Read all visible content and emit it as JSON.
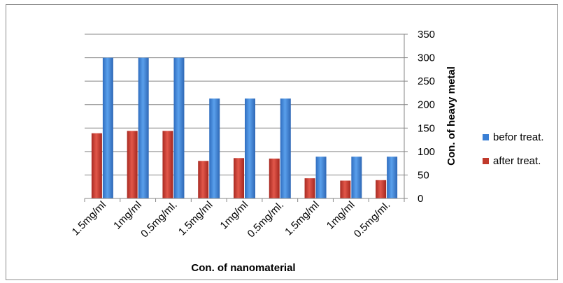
{
  "chart_data": {
    "type": "bar",
    "categories": [
      "1.5mg/ml",
      "1mg/ml",
      "0.5mg/ml.",
      "1.5mg/ml",
      "1mg/ml",
      "0.5mg/ml.",
      "1.5mg/ml",
      "1mg/ml",
      "0.5mg/ml."
    ],
    "series": [
      {
        "name": "after treat.",
        "color": "#c0392b",
        "values": [
          139,
          144,
          144,
          80,
          86,
          85,
          43,
          38,
          39
        ]
      },
      {
        "name": "befor treat.",
        "color": "#3a7fd5",
        "values": [
          300,
          300,
          300,
          213,
          213,
          213,
          89,
          89,
          89
        ]
      }
    ],
    "xlabel": "Con. of nanomaterial",
    "ylabel": "Con. of heavy metal",
    "ylim": [
      0,
      350
    ],
    "yticks": [
      0,
      50,
      100,
      150,
      200,
      250,
      300,
      350
    ],
    "yaxis_side": "right",
    "grid": true,
    "legend": {
      "placement": "right",
      "entries": [
        {
          "label": "befor treat.",
          "color": "#3a7fd5"
        },
        {
          "label": "after treat.",
          "color": "#c0392b"
        }
      ]
    }
  }
}
